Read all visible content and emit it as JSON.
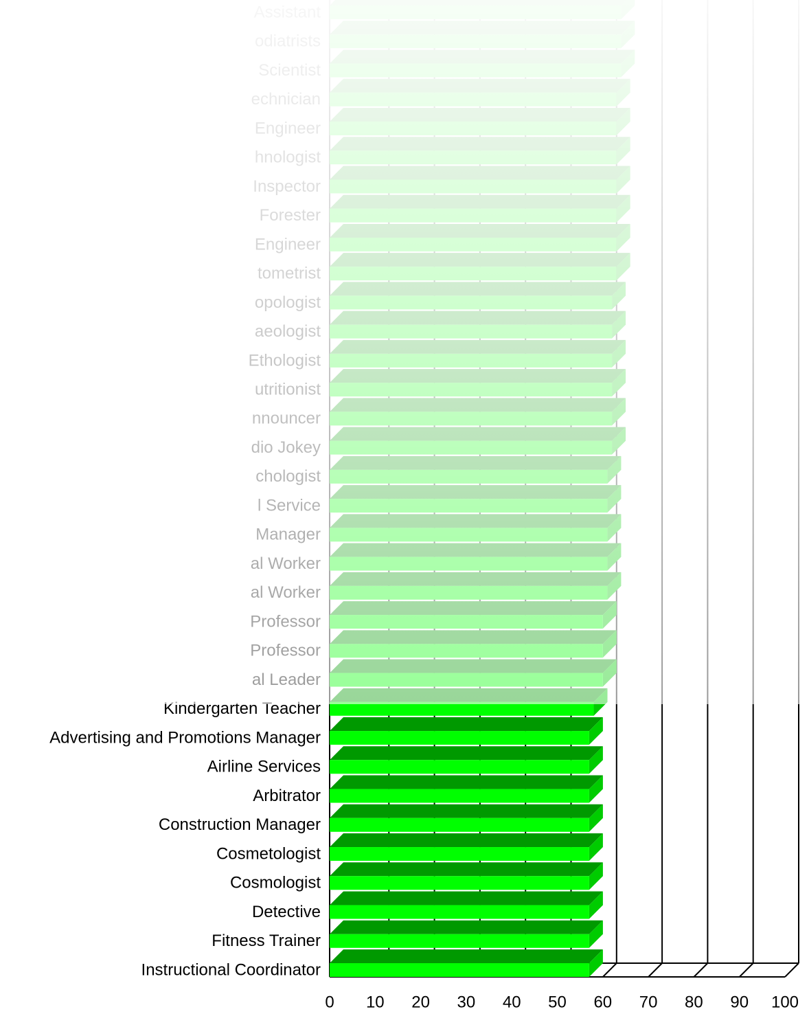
{
  "chart_data": {
    "type": "bar",
    "orientation": "horizontal",
    "categories": [
      "Assistant",
      "odiatrists",
      "Scientist",
      "echnician",
      "Engineer",
      "hnologist",
      "Inspector",
      "Forester",
      "Engineer",
      "tometrist",
      "opologist",
      "aeologist",
      "Ethologist",
      "utritionist",
      "nnouncer",
      "dio Jokey",
      "chologist",
      "l Service",
      "Manager",
      "al Worker",
      "al Worker",
      "Professor",
      "Professor",
      "al Leader",
      "Kindergarten Teacher",
      "Advertising and Promotions Manager",
      "Airline Services",
      "Arbitrator",
      "Construction Manager",
      "Cosmetologist",
      "Cosmologist",
      "Detective",
      "Fitness Trainer",
      "Instructional Coordinator"
    ],
    "values": [
      64,
      64,
      64,
      63,
      63,
      63,
      63,
      63,
      63,
      63,
      62,
      62,
      62,
      62,
      62,
      62,
      61,
      61,
      61,
      61,
      61,
      60,
      60,
      60,
      58,
      57,
      57,
      57,
      57,
      57,
      57,
      57,
      57,
      57
    ],
    "color": "#00ff00",
    "xlim": [
      0,
      100
    ],
    "xticks": [
      0,
      10,
      20,
      30,
      40,
      50,
      60,
      70,
      80,
      90,
      100
    ],
    "grid": true
  }
}
